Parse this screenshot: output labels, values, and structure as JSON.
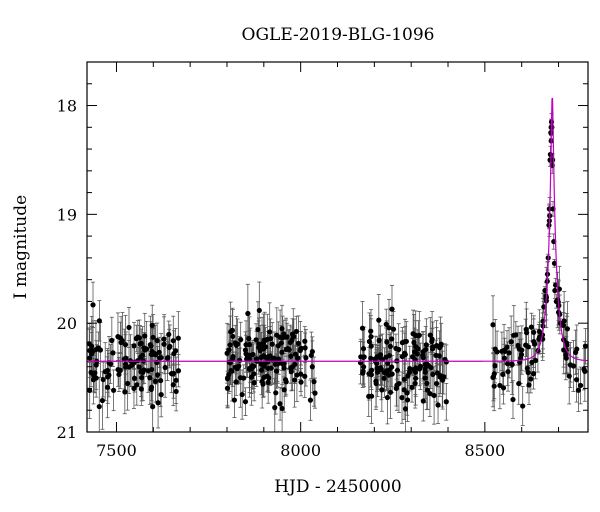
{
  "chart_data": {
    "type": "scatter",
    "title": "OGLE-2019-BLG-1096",
    "xlabel": "HJD - 2450000",
    "ylabel": "I magnitude",
    "xlim": [
      7420,
      8780
    ],
    "ylim": [
      21,
      17.6
    ],
    "y_inverted": true,
    "x_ticks": [
      7500,
      8000,
      8500
    ],
    "y_ticks": [
      18,
      19,
      20,
      21
    ],
    "grid": false,
    "legend": "none",
    "colors": {
      "points": "#000000",
      "errorbars": "#555555",
      "model": "#c000c0"
    },
    "seasons": [
      {
        "start": 7425,
        "end": 7670,
        "n": 120
      },
      {
        "start": 7800,
        "end": 8040,
        "n": 150
      },
      {
        "start": 8160,
        "end": 8400,
        "n": 140
      },
      {
        "start": 8520,
        "end": 8775,
        "n": 90
      }
    ],
    "baseline_mag": 20.35,
    "baseline_scatter": 0.25,
    "typical_error": 0.2,
    "peak": {
      "t0": 8683,
      "peak_mag": 17.9,
      "tE": 22,
      "u0": 0.12
    },
    "peak_points": [
      {
        "x": 8670,
        "y": 19.55
      },
      {
        "x": 8672,
        "y": 19.4
      },
      {
        "x": 8674,
        "y": 19.1
      },
      {
        "x": 8675,
        "y": 18.95
      },
      {
        "x": 8677,
        "y": 18.5
      },
      {
        "x": 8678,
        "y": 18.45
      },
      {
        "x": 8679,
        "y": 18.25
      },
      {
        "x": 8680,
        "y": 18.2
      },
      {
        "x": 8681,
        "y": 18.15
      },
      {
        "x": 8682,
        "y": 18.2
      },
      {
        "x": 8683,
        "y": 18.55
      },
      {
        "x": 8684,
        "y": 18.5
      },
      {
        "x": 8685,
        "y": 18.95
      },
      {
        "x": 8687,
        "y": 19.25
      },
      {
        "x": 8689,
        "y": 19.45
      },
      {
        "x": 8690,
        "y": 19.7
      },
      {
        "x": 8692,
        "y": 19.65
      },
      {
        "x": 8694,
        "y": 19.8
      },
      {
        "x": 8660,
        "y": 19.85
      },
      {
        "x": 8663,
        "y": 19.7
      },
      {
        "x": 8666,
        "y": 19.75
      },
      {
        "x": 8700,
        "y": 19.9
      },
      {
        "x": 8705,
        "y": 20.0
      }
    ]
  }
}
